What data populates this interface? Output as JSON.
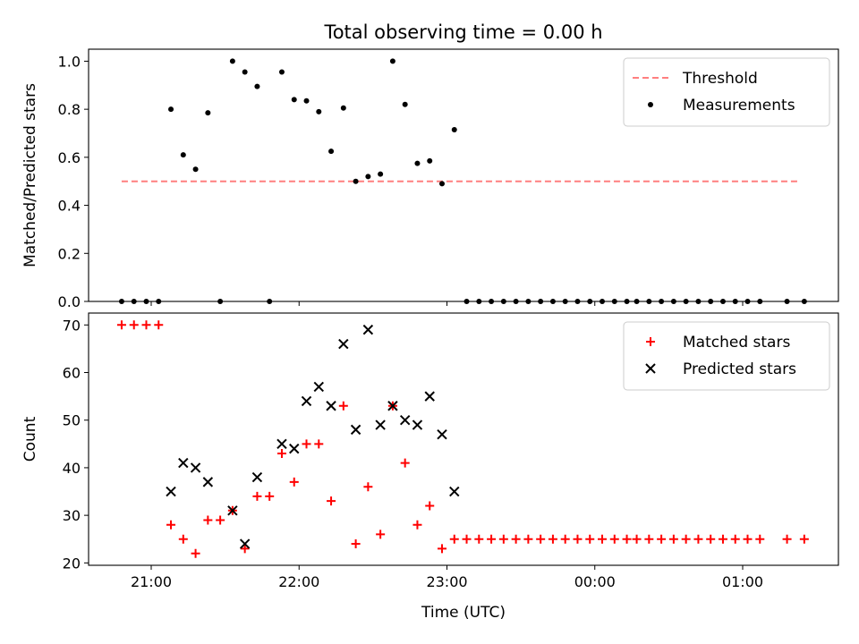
{
  "figure": {
    "title": "Total observing time = 0.00 h"
  },
  "x_axis": {
    "label": "Time (UTC)",
    "range_min": [
      20,
      32
    ],
    "range_max": [
      25,
      38
    ],
    "ticks": [
      {
        "label": "21:00",
        "minutes": 0
      },
      {
        "label": "22:00",
        "minutes": 60
      },
      {
        "label": "23:00",
        "minutes": 120
      },
      {
        "label": "00:00",
        "minutes": 180
      },
      {
        "label": "01:00",
        "minutes": 240
      }
    ]
  },
  "chart_data": [
    {
      "type": "scatter",
      "panel": "top",
      "ylabel": "Matched/Predicted stars",
      "ylim": [
        0,
        1.05
      ],
      "yticks": [
        "0.0",
        "0.2",
        "0.4",
        "0.6",
        "0.8",
        "1.0"
      ],
      "legend_position": "top-right",
      "threshold": {
        "name": "Threshold",
        "value": 0.5,
        "color": "#ff7f7f",
        "style": "dashed",
        "x_start": -12,
        "x_end": 263
      },
      "series": [
        {
          "name": "Measurements",
          "color": "#000000",
          "points": [
            {
              "x": -12,
              "y": 0
            },
            {
              "x": -7,
              "y": 0
            },
            {
              "x": -2,
              "y": 0
            },
            {
              "x": 3,
              "y": 0
            },
            {
              "x": 8,
              "y": 0.8
            },
            {
              "x": 13,
              "y": 0.61
            },
            {
              "x": 18,
              "y": 0.55
            },
            {
              "x": 23,
              "y": 0.785
            },
            {
              "x": 28,
              "y": 0
            },
            {
              "x": 33,
              "y": 1.0
            },
            {
              "x": 38,
              "y": 0.955
            },
            {
              "x": 43,
              "y": 0.895
            },
            {
              "x": 48,
              "y": 0
            },
            {
              "x": 53,
              "y": 0.955
            },
            {
              "x": 58,
              "y": 0.84
            },
            {
              "x": 63,
              "y": 0.835
            },
            {
              "x": 68,
              "y": 0.79
            },
            {
              "x": 73,
              "y": 0.625
            },
            {
              "x": 78,
              "y": 0.805
            },
            {
              "x": 83,
              "y": 0.5
            },
            {
              "x": 88,
              "y": 0.52
            },
            {
              "x": 93,
              "y": 0.53
            },
            {
              "x": 98,
              "y": 1.0
            },
            {
              "x": 103,
              "y": 0.82
            },
            {
              "x": 108,
              "y": 0.575
            },
            {
              "x": 113,
              "y": 0.585
            },
            {
              "x": 118,
              "y": 0.49
            },
            {
              "x": 123,
              "y": 0.715
            },
            {
              "x": 128,
              "y": 0
            },
            {
              "x": 133,
              "y": 0
            },
            {
              "x": 138,
              "y": 0
            },
            {
              "x": 143,
              "y": 0
            },
            {
              "x": 148,
              "y": 0
            },
            {
              "x": 153,
              "y": 0
            },
            {
              "x": 158,
              "y": 0
            },
            {
              "x": 163,
              "y": 0
            },
            {
              "x": 168,
              "y": 0
            },
            {
              "x": 173,
              "y": 0
            },
            {
              "x": 178,
              "y": 0
            },
            {
              "x": 183,
              "y": 0
            },
            {
              "x": 188,
              "y": 0
            },
            {
              "x": 193,
              "y": 0
            },
            {
              "x": 197,
              "y": 0
            },
            {
              "x": 202,
              "y": 0
            },
            {
              "x": 207,
              "y": 0
            },
            {
              "x": 212,
              "y": 0
            },
            {
              "x": 217,
              "y": 0
            },
            {
              "x": 222,
              "y": 0
            },
            {
              "x": 227,
              "y": 0
            },
            {
              "x": 232,
              "y": 0
            },
            {
              "x": 237,
              "y": 0
            },
            {
              "x": 242,
              "y": 0
            },
            {
              "x": 247,
              "y": 0
            },
            {
              "x": 258,
              "y": 0
            },
            {
              "x": 265,
              "y": 0
            }
          ]
        }
      ]
    },
    {
      "type": "scatter",
      "panel": "bottom",
      "ylabel": "Count",
      "ylim": [
        19.5,
        72.5
      ],
      "yticks": [
        "20",
        "30",
        "40",
        "50",
        "60",
        "70"
      ],
      "legend_position": "top-right",
      "series": [
        {
          "name": "Matched stars",
          "color": "#ff0000",
          "marker": "plus",
          "points": [
            {
              "x": -12,
              "y": 70
            },
            {
              "x": -7,
              "y": 70
            },
            {
              "x": -2,
              "y": 70
            },
            {
              "x": 3,
              "y": 70
            },
            {
              "x": 8,
              "y": 28
            },
            {
              "x": 13,
              "y": 25
            },
            {
              "x": 18,
              "y": 22
            },
            {
              "x": 23,
              "y": 29
            },
            {
              "x": 28,
              "y": 29
            },
            {
              "x": 33,
              "y": 31
            },
            {
              "x": 38,
              "y": 23
            },
            {
              "x": 43,
              "y": 34
            },
            {
              "x": 48,
              "y": 34
            },
            {
              "x": 53,
              "y": 43
            },
            {
              "x": 58,
              "y": 37
            },
            {
              "x": 63,
              "y": 45
            },
            {
              "x": 68,
              "y": 45
            },
            {
              "x": 73,
              "y": 33
            },
            {
              "x": 78,
              "y": 53
            },
            {
              "x": 83,
              "y": 24
            },
            {
              "x": 88,
              "y": 36
            },
            {
              "x": 93,
              "y": 26
            },
            {
              "x": 98,
              "y": 53
            },
            {
              "x": 103,
              "y": 41
            },
            {
              "x": 108,
              "y": 28
            },
            {
              "x": 113,
              "y": 32
            },
            {
              "x": 118,
              "y": 23
            },
            {
              "x": 123,
              "y": 25
            },
            {
              "x": 128,
              "y": 25
            },
            {
              "x": 133,
              "y": 25
            },
            {
              "x": 138,
              "y": 25
            },
            {
              "x": 143,
              "y": 25
            },
            {
              "x": 148,
              "y": 25
            },
            {
              "x": 153,
              "y": 25
            },
            {
              "x": 158,
              "y": 25
            },
            {
              "x": 163,
              "y": 25
            },
            {
              "x": 168,
              "y": 25
            },
            {
              "x": 173,
              "y": 25
            },
            {
              "x": 178,
              "y": 25
            },
            {
              "x": 183,
              "y": 25
            },
            {
              "x": 188,
              "y": 25
            },
            {
              "x": 193,
              "y": 25
            },
            {
              "x": 197,
              "y": 25
            },
            {
              "x": 202,
              "y": 25
            },
            {
              "x": 207,
              "y": 25
            },
            {
              "x": 212,
              "y": 25
            },
            {
              "x": 217,
              "y": 25
            },
            {
              "x": 222,
              "y": 25
            },
            {
              "x": 227,
              "y": 25
            },
            {
              "x": 232,
              "y": 25
            },
            {
              "x": 237,
              "y": 25
            },
            {
              "x": 242,
              "y": 25
            },
            {
              "x": 247,
              "y": 25
            },
            {
              "x": 258,
              "y": 25
            },
            {
              "x": 265,
              "y": 25
            }
          ]
        },
        {
          "name": "Predicted stars",
          "color": "#000000",
          "marker": "x",
          "points": [
            {
              "x": 8,
              "y": 35
            },
            {
              "x": 13,
              "y": 41
            },
            {
              "x": 18,
              "y": 40
            },
            {
              "x": 23,
              "y": 37
            },
            {
              "x": 33,
              "y": 31
            },
            {
              "x": 38,
              "y": 24
            },
            {
              "x": 43,
              "y": 38
            },
            {
              "x": 53,
              "y": 45
            },
            {
              "x": 58,
              "y": 44
            },
            {
              "x": 63,
              "y": 54
            },
            {
              "x": 68,
              "y": 57
            },
            {
              "x": 73,
              "y": 53
            },
            {
              "x": 78,
              "y": 66
            },
            {
              "x": 83,
              "y": 48
            },
            {
              "x": 88,
              "y": 69
            },
            {
              "x": 93,
              "y": 49
            },
            {
              "x": 98,
              "y": 53
            },
            {
              "x": 103,
              "y": 50
            },
            {
              "x": 108,
              "y": 49
            },
            {
              "x": 113,
              "y": 55
            },
            {
              "x": 118,
              "y": 47
            },
            {
              "x": 123,
              "y": 35
            }
          ]
        }
      ]
    }
  ]
}
